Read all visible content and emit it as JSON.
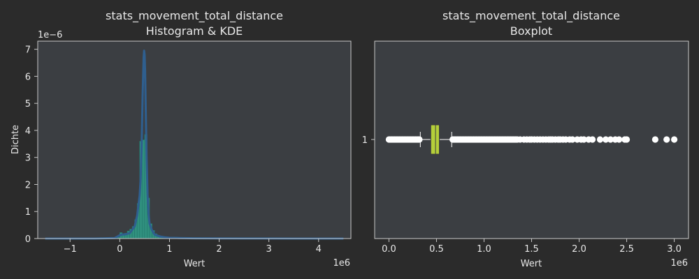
{
  "colors": {
    "figure_bg": "#2b2b2b",
    "axes_bg": "#3b3e42",
    "text": "#e8e8e8",
    "spine": "#c8c8c8",
    "kde_line": "#2f5f8f",
    "hist_fill": "#2fa08a",
    "hist_edge": "#24756a",
    "box_fill": "#b5cf3a",
    "outlier": "#ffffff"
  },
  "chart_data": [
    {
      "type": "histogram",
      "title": "stats_movement_total_distance\nHistogram & KDE",
      "xlabel": "Wert",
      "ylabel": "Dichte",
      "x_offset_text": "1e6",
      "y_offset_text": "1e−6",
      "xlim": [
        -1.65,
        4.65
      ],
      "ylim": [
        0,
        7.3
      ],
      "x_ticks": [
        -1,
        0,
        1,
        2,
        3,
        4
      ],
      "x_tick_labels": [
        "−1",
        "0",
        "1",
        "2",
        "3",
        "4"
      ],
      "y_ticks": [
        0,
        1,
        2,
        3,
        4,
        5,
        6,
        7
      ],
      "y_tick_labels": [
        "0",
        "1",
        "2",
        "3",
        "4",
        "5",
        "6",
        "7"
      ],
      "histogram": {
        "bin_edges": [
          -0.05,
          0.0,
          0.05,
          0.1,
          0.15,
          0.2,
          0.25,
          0.3,
          0.35,
          0.4,
          0.45,
          0.5,
          0.55,
          0.6,
          0.65,
          0.7,
          0.75,
          0.8,
          0.85,
          0.9,
          1.0,
          1.2,
          1.6,
          2.0,
          2.6,
          3.0
        ],
        "densities": [
          0.05,
          0.22,
          0.18,
          0.2,
          0.28,
          0.35,
          0.45,
          0.7,
          1.3,
          3.6,
          3.65,
          3.85,
          1.5,
          0.55,
          0.3,
          0.18,
          0.12,
          0.08,
          0.06,
          0.04,
          0.025,
          0.015,
          0.01,
          0.005,
          0.003
        ]
      },
      "kde": {
        "x": [
          -1.5,
          -0.5,
          -0.1,
          0.0,
          0.05,
          0.1,
          0.2,
          0.3,
          0.35,
          0.4,
          0.42,
          0.44,
          0.46,
          0.48,
          0.49,
          0.5,
          0.51,
          0.52,
          0.54,
          0.56,
          0.58,
          0.6,
          0.65,
          0.7,
          0.8,
          0.9,
          1.0,
          1.2,
          1.5,
          2.0,
          2.5,
          3.0,
          3.5,
          4.0,
          4.5
        ],
        "y": [
          0.0,
          0.0,
          0.02,
          0.12,
          0.15,
          0.15,
          0.2,
          0.45,
          0.85,
          1.6,
          2.2,
          3.4,
          5.3,
          6.7,
          6.95,
          6.8,
          6.2,
          5.1,
          3.0,
          1.6,
          0.9,
          0.55,
          0.3,
          0.15,
          0.08,
          0.05,
          0.03,
          0.02,
          0.01,
          0.005,
          0.002,
          0.002,
          0.0,
          0.0,
          0.0
        ]
      }
    },
    {
      "type": "boxplot",
      "title": "stats_movement_total_distance\nBoxplot",
      "xlabel": "Wert",
      "ylabel": "",
      "x_offset_text": "1e6",
      "xlim": [
        -0.15,
        3.15
      ],
      "x_ticks": [
        0.0,
        0.5,
        1.0,
        1.5,
        2.0,
        2.5,
        3.0
      ],
      "x_tick_labels": [
        "0.0",
        "0.5",
        "1.0",
        "1.5",
        "2.0",
        "2.5",
        "3.0"
      ],
      "y_tick_labels": [
        "1"
      ],
      "box": {
        "whisker_low": 0.33,
        "q1": 0.44,
        "median": 0.49,
        "q3": 0.53,
        "whisker_high": 0.66
      },
      "outliers_low_range": [
        0.0,
        0.32
      ],
      "outliers_high_range": [
        0.67,
        1.35
      ],
      "outliers": [
        1.38,
        1.42,
        1.45,
        1.48,
        1.5,
        1.53,
        1.56,
        1.59,
        1.62,
        1.65,
        1.68,
        1.7,
        1.72,
        1.75,
        1.78,
        1.8,
        1.83,
        1.86,
        1.9,
        1.93,
        1.98,
        2.02,
        2.05,
        2.1,
        2.14,
        2.22,
        2.28,
        2.33,
        2.38,
        2.42,
        2.48,
        2.5,
        2.8,
        2.92,
        3.0
      ]
    }
  ]
}
